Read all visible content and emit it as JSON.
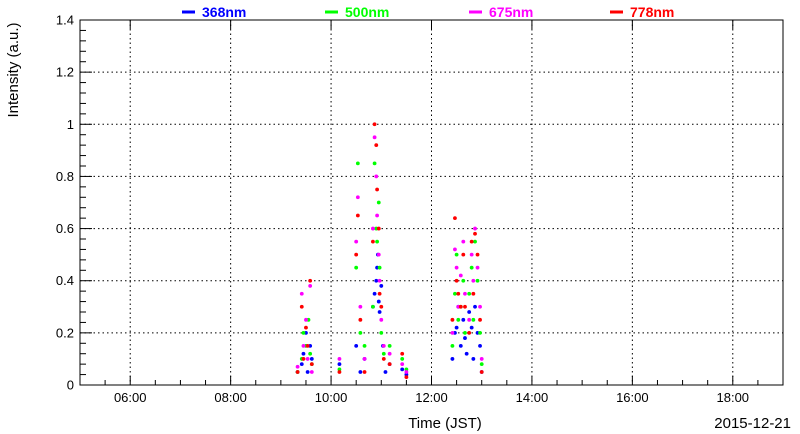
{
  "chart_data": {
    "type": "scatter",
    "title": "",
    "xlabel": "Time (JST)",
    "ylabel": "Intensity (a.u.)",
    "date_label": "2015-12-21",
    "xlim": [
      "05:00",
      "19:00"
    ],
    "ylim": [
      0,
      1.4
    ],
    "x_ticks": [
      "06:00",
      "08:00",
      "10:00",
      "12:00",
      "14:00",
      "16:00",
      "18:00"
    ],
    "y_ticks": [
      "0",
      "0.2",
      "0.4",
      "0.6",
      "0.8",
      "1",
      "1.2",
      "1.4"
    ],
    "grid": true,
    "legend_position": "top",
    "series": [
      {
        "name": "368nm",
        "color": "#0000ff",
        "points": [
          [
            "09:20",
            0.05
          ],
          [
            "09:25",
            0.08
          ],
          [
            "09:27",
            0.12
          ],
          [
            "09:30",
            0.2
          ],
          [
            "09:32",
            0.05
          ],
          [
            "09:35",
            0.15
          ],
          [
            "09:37",
            0.1
          ],
          [
            "10:10",
            0.08
          ],
          [
            "10:30",
            0.15
          ],
          [
            "10:35",
            0.05
          ],
          [
            "10:40",
            0.1
          ],
          [
            "10:50",
            0.3
          ],
          [
            "10:52",
            0.35
          ],
          [
            "10:54",
            0.4
          ],
          [
            "10:55",
            0.45
          ],
          [
            "10:56",
            0.5
          ],
          [
            "10:57",
            0.32
          ],
          [
            "10:58",
            0.28
          ],
          [
            "11:00",
            0.38
          ],
          [
            "11:02",
            0.15
          ],
          [
            "11:05",
            0.05
          ],
          [
            "11:10",
            0.08
          ],
          [
            "11:25",
            0.06
          ],
          [
            "11:30",
            0.04
          ],
          [
            "12:25",
            0.1
          ],
          [
            "12:28",
            0.2
          ],
          [
            "12:30",
            0.22
          ],
          [
            "12:32",
            0.3
          ],
          [
            "12:35",
            0.15
          ],
          [
            "12:38",
            0.25
          ],
          [
            "12:40",
            0.18
          ],
          [
            "12:42",
            0.12
          ],
          [
            "12:45",
            0.28
          ],
          [
            "12:48",
            0.22
          ],
          [
            "12:50",
            0.1
          ],
          [
            "12:52",
            0.3
          ],
          [
            "12:55",
            0.2
          ],
          [
            "12:58",
            0.15
          ],
          [
            "13:00",
            0.05
          ]
        ]
      },
      {
        "name": "500nm",
        "color": "#00ff00",
        "points": [
          [
            "09:20",
            0.05
          ],
          [
            "09:25",
            0.1
          ],
          [
            "09:27",
            0.2
          ],
          [
            "09:30",
            0.15
          ],
          [
            "09:33",
            0.25
          ],
          [
            "09:35",
            0.12
          ],
          [
            "09:37",
            0.08
          ],
          [
            "10:10",
            0.06
          ],
          [
            "10:30",
            0.45
          ],
          [
            "10:32",
            0.85
          ],
          [
            "10:35",
            0.2
          ],
          [
            "10:40",
            0.15
          ],
          [
            "10:50",
            0.3
          ],
          [
            "10:52",
            0.85
          ],
          [
            "10:54",
            0.6
          ],
          [
            "10:55",
            0.55
          ],
          [
            "10:57",
            0.7
          ],
          [
            "10:58",
            0.45
          ],
          [
            "11:00",
            0.2
          ],
          [
            "11:03",
            0.12
          ],
          [
            "11:10",
            0.15
          ],
          [
            "11:25",
            0.1
          ],
          [
            "11:30",
            0.06
          ],
          [
            "12:25",
            0.15
          ],
          [
            "12:28",
            0.35
          ],
          [
            "12:30",
            0.5
          ],
          [
            "12:32",
            0.25
          ],
          [
            "12:35",
            0.3
          ],
          [
            "12:38",
            0.4
          ],
          [
            "12:40",
            0.2
          ],
          [
            "12:45",
            0.35
          ],
          [
            "12:48",
            0.45
          ],
          [
            "12:50",
            0.25
          ],
          [
            "12:52",
            0.55
          ],
          [
            "12:55",
            0.4
          ],
          [
            "12:58",
            0.2
          ],
          [
            "13:00",
            0.08
          ]
        ]
      },
      {
        "name": "675nm",
        "color": "#ff00ff",
        "points": [
          [
            "09:20",
            0.07
          ],
          [
            "09:25",
            0.35
          ],
          [
            "09:27",
            0.15
          ],
          [
            "09:30",
            0.25
          ],
          [
            "09:32",
            0.1
          ],
          [
            "09:35",
            0.38
          ],
          [
            "09:37",
            0.05
          ],
          [
            "10:10",
            0.1
          ],
          [
            "10:30",
            0.55
          ],
          [
            "10:32",
            0.72
          ],
          [
            "10:35",
            0.3
          ],
          [
            "10:40",
            0.1
          ],
          [
            "10:50",
            0.6
          ],
          [
            "10:52",
            0.95
          ],
          [
            "10:54",
            0.8
          ],
          [
            "10:55",
            0.65
          ],
          [
            "10:57",
            0.5
          ],
          [
            "10:58",
            0.4
          ],
          [
            "11:00",
            0.25
          ],
          [
            "11:03",
            0.15
          ],
          [
            "11:10",
            0.12
          ],
          [
            "11:25",
            0.08
          ],
          [
            "11:30",
            0.05
          ],
          [
            "12:25",
            0.2
          ],
          [
            "12:28",
            0.52
          ],
          [
            "12:30",
            0.45
          ],
          [
            "12:32",
            0.3
          ],
          [
            "12:35",
            0.42
          ],
          [
            "12:38",
            0.55
          ],
          [
            "12:40",
            0.35
          ],
          [
            "12:45",
            0.25
          ],
          [
            "12:48",
            0.5
          ],
          [
            "12:50",
            0.4
          ],
          [
            "12:52",
            0.6
          ],
          [
            "12:55",
            0.45
          ],
          [
            "12:58",
            0.3
          ],
          [
            "13:00",
            0.1
          ]
        ]
      },
      {
        "name": "778nm",
        "color": "#ff0000",
        "points": [
          [
            "09:20",
            0.05
          ],
          [
            "09:25",
            0.3
          ],
          [
            "09:27",
            0.1
          ],
          [
            "09:30",
            0.22
          ],
          [
            "09:32",
            0.15
          ],
          [
            "09:35",
            0.4
          ],
          [
            "09:37",
            0.08
          ],
          [
            "10:10",
            0.05
          ],
          [
            "10:30",
            0.5
          ],
          [
            "10:32",
            0.65
          ],
          [
            "10:35",
            0.25
          ],
          [
            "10:40",
            0.05
          ],
          [
            "10:50",
            0.55
          ],
          [
            "10:52",
            1.0
          ],
          [
            "10:54",
            0.92
          ],
          [
            "10:55",
            0.75
          ],
          [
            "10:57",
            0.6
          ],
          [
            "10:58",
            0.35
          ],
          [
            "11:00",
            0.3
          ],
          [
            "11:03",
            0.1
          ],
          [
            "11:10",
            0.08
          ],
          [
            "11:25",
            0.12
          ],
          [
            "11:30",
            0.03
          ],
          [
            "12:25",
            0.25
          ],
          [
            "12:28",
            0.64
          ],
          [
            "12:30",
            0.4
          ],
          [
            "12:32",
            0.35
          ],
          [
            "12:35",
            0.3
          ],
          [
            "12:38",
            0.5
          ],
          [
            "12:40",
            0.3
          ],
          [
            "12:45",
            0.2
          ],
          [
            "12:48",
            0.55
          ],
          [
            "12:50",
            0.35
          ],
          [
            "12:52",
            0.58
          ],
          [
            "12:55",
            0.5
          ],
          [
            "12:58",
            0.25
          ],
          [
            "13:00",
            0.05
          ]
        ]
      }
    ]
  }
}
